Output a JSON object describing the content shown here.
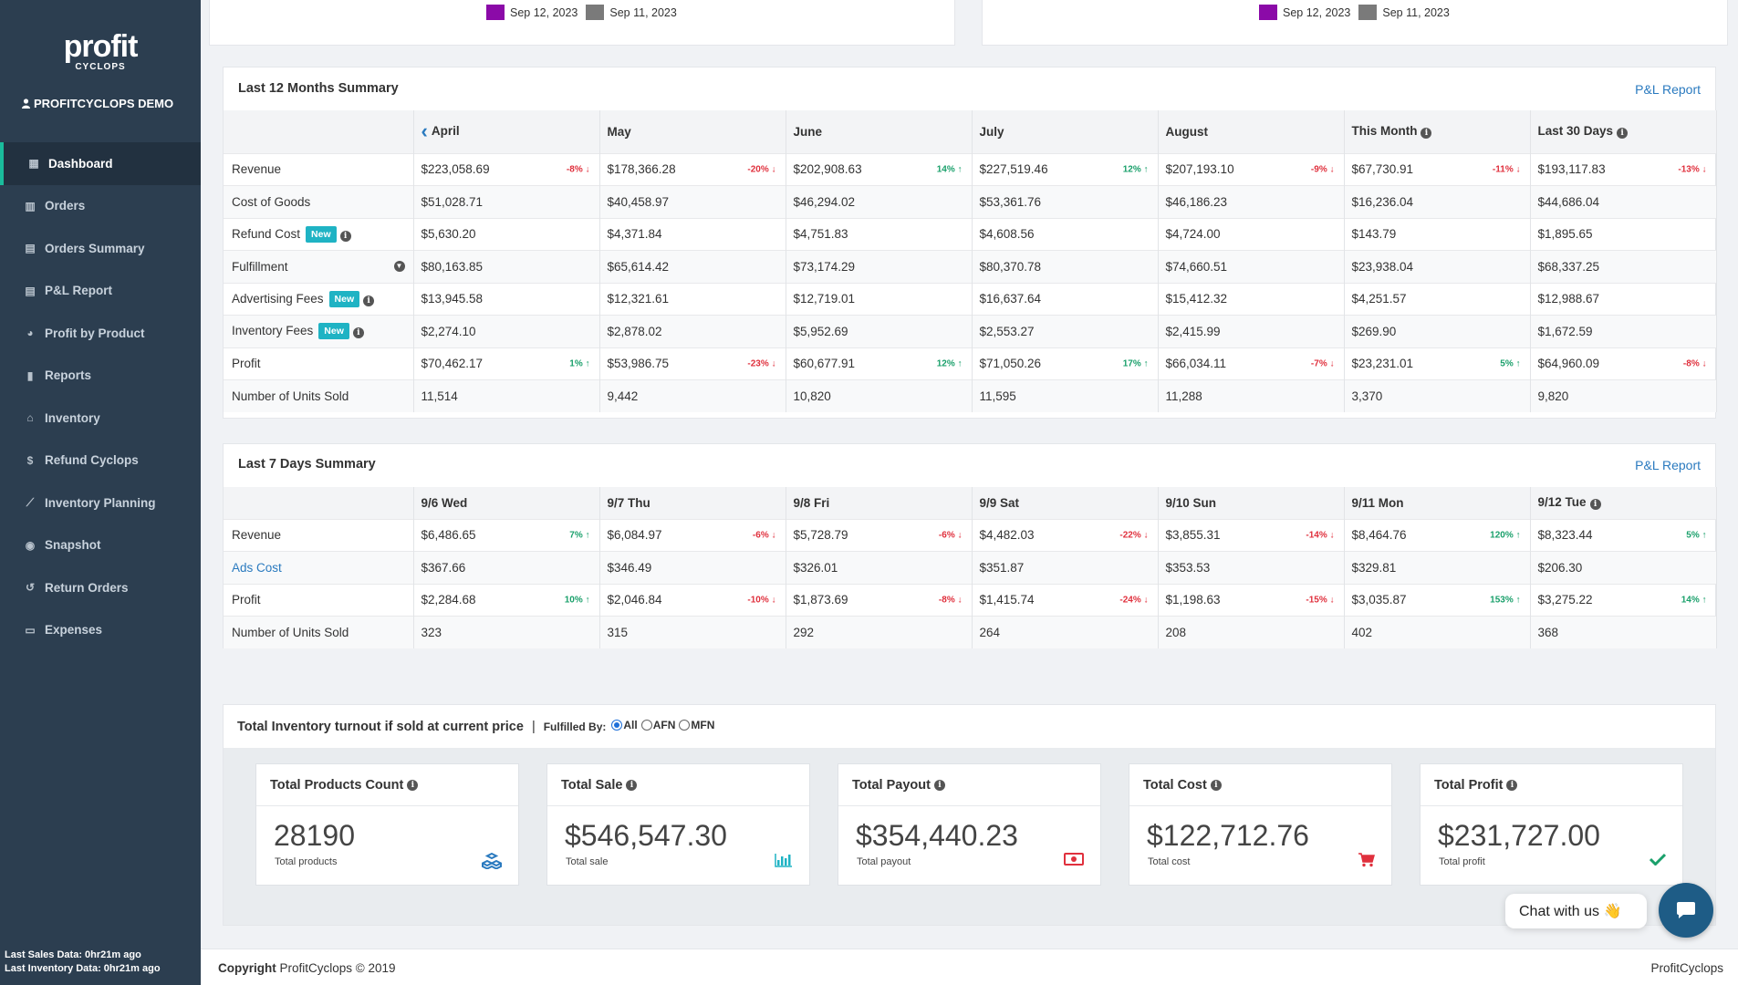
{
  "brand": {
    "line1": "profit",
    "line2": "CYCLOPS"
  },
  "user": {
    "name": "PROFITCYCLOPS DEMO"
  },
  "nav": [
    {
      "label": "Dashboard",
      "icon": "dashboard-icon",
      "active": true
    },
    {
      "label": "Orders",
      "icon": "bar-chart-icon"
    },
    {
      "label": "Orders Summary",
      "icon": "table-icon"
    },
    {
      "label": "P&L Report",
      "icon": "table-icon"
    },
    {
      "label": "Profit by Product",
      "icon": "pie-chart-icon"
    },
    {
      "label": "Reports",
      "icon": "book-icon"
    },
    {
      "label": "Inventory",
      "icon": "bank-icon"
    },
    {
      "label": "Refund Cyclops",
      "icon": "dollar-icon"
    },
    {
      "label": "Inventory Planning",
      "icon": "line-chart-icon"
    },
    {
      "label": "Snapshot",
      "icon": "camera-icon"
    },
    {
      "label": "Return Orders",
      "icon": "undo-icon"
    },
    {
      "label": "Expenses",
      "icon": "money-icon"
    }
  ],
  "sidebar_footer": {
    "sales": "Last Sales Data: 0hr21m ago",
    "inventory": "Last Inventory Data: 0hr21m ago"
  },
  "legends": [
    {
      "items": [
        {
          "label": "Sep 12, 2023",
          "color": "#8b0aa8"
        },
        {
          "label": "Sep 11, 2023",
          "color": "#7a7a7a"
        }
      ]
    },
    {
      "items": [
        {
          "label": "Sep 12, 2023",
          "color": "#8b0aa8"
        },
        {
          "label": "Sep 11, 2023",
          "color": "#7a7a7a"
        }
      ]
    }
  ],
  "monthly": {
    "title": "Last 12 Months Summary",
    "link": "P&L Report",
    "columns": [
      "April",
      "May",
      "June",
      "July",
      "August",
      "This Month",
      "Last 30 Days"
    ],
    "rows": [
      {
        "label": "Revenue",
        "values": [
          "$223,058.69",
          "$178,366.28",
          "$202,908.63",
          "$227,519.46",
          "$207,193.10",
          "$67,730.91",
          "$193,117.83"
        ],
        "changes": [
          [
            "-8%",
            "down"
          ],
          [
            "-20%",
            "down"
          ],
          [
            "14%",
            "up"
          ],
          [
            "12%",
            "up"
          ],
          [
            "-9%",
            "down"
          ],
          [
            "-11%",
            "down"
          ],
          [
            "-13%",
            "down"
          ]
        ]
      },
      {
        "label": "Cost of Goods",
        "values": [
          "$51,028.71",
          "$40,458.97",
          "$46,294.02",
          "$53,361.76",
          "$46,186.23",
          "$16,236.04",
          "$44,686.04"
        ]
      },
      {
        "label": "Refund Cost",
        "badge": "New",
        "info": true,
        "values": [
          "$5,630.20",
          "$4,371.84",
          "$4,751.83",
          "$4,608.56",
          "$4,724.00",
          "$143.79",
          "$1,895.65"
        ]
      },
      {
        "label": "Fulfillment",
        "collapse": true,
        "values": [
          "$80,163.85",
          "$65,614.42",
          "$73,174.29",
          "$80,370.78",
          "$74,660.51",
          "$23,938.04",
          "$68,337.25"
        ]
      },
      {
        "label": "Advertising Fees",
        "badge": "New",
        "info": true,
        "values": [
          "$13,945.58",
          "$12,321.61",
          "$12,719.01",
          "$16,637.64",
          "$15,412.32",
          "$4,251.57",
          "$12,988.67"
        ]
      },
      {
        "label": "Inventory Fees",
        "badge": "New",
        "info": true,
        "values": [
          "$2,274.10",
          "$2,878.02",
          "$5,952.69",
          "$2,553.27",
          "$2,415.99",
          "$269.90",
          "$1,672.59"
        ]
      },
      {
        "label": "Profit",
        "values": [
          "$70,462.17",
          "$53,986.75",
          "$60,677.91",
          "$71,050.26",
          "$66,034.11",
          "$23,231.01",
          "$64,960.09"
        ],
        "changes": [
          [
            "1%",
            "up"
          ],
          [
            "-23%",
            "down"
          ],
          [
            "12%",
            "up"
          ],
          [
            "17%",
            "up"
          ],
          [
            "-7%",
            "down"
          ],
          [
            "5%",
            "up"
          ],
          [
            "-8%",
            "down"
          ]
        ]
      },
      {
        "label": "Number of Units Sold",
        "values": [
          "11,514",
          "9,442",
          "10,820",
          "11,595",
          "11,288",
          "3,370",
          "9,820"
        ]
      }
    ]
  },
  "weekly": {
    "title": "Last 7 Days Summary",
    "link": "P&L Report",
    "columns": [
      "9/6 Wed",
      "9/7 Thu",
      "9/8 Fri",
      "9/9 Sat",
      "9/10 Sun",
      "9/11 Mon",
      "9/12 Tue"
    ],
    "rows": [
      {
        "label": "Revenue",
        "values": [
          "$6,486.65",
          "$6,084.97",
          "$5,728.79",
          "$4,482.03",
          "$3,855.31",
          "$8,464.76",
          "$8,323.44"
        ],
        "changes": [
          [
            "7%",
            "up"
          ],
          [
            "-6%",
            "down"
          ],
          [
            "-6%",
            "down"
          ],
          [
            "-22%",
            "down"
          ],
          [
            "-14%",
            "down"
          ],
          [
            "120%",
            "up"
          ],
          [
            "5%",
            "up"
          ]
        ]
      },
      {
        "label": "Ads Cost",
        "link": true,
        "values": [
          "$367.66",
          "$346.49",
          "$326.01",
          "$351.87",
          "$353.53",
          "$329.81",
          "$206.30"
        ]
      },
      {
        "label": "Profit",
        "values": [
          "$2,284.68",
          "$2,046.84",
          "$1,873.69",
          "$1,415.74",
          "$1,198.63",
          "$3,035.87",
          "$3,275.22"
        ],
        "changes": [
          [
            "10%",
            "up"
          ],
          [
            "-10%",
            "down"
          ],
          [
            "-8%",
            "down"
          ],
          [
            "-24%",
            "down"
          ],
          [
            "-15%",
            "down"
          ],
          [
            "153%",
            "up"
          ],
          [
            "14%",
            "up"
          ]
        ]
      },
      {
        "label": "Number of Units Sold",
        "values": [
          "323",
          "315",
          "292",
          "264",
          "208",
          "402",
          "368"
        ]
      }
    ]
  },
  "inventory": {
    "title": "Total Inventory turnout if sold at current price",
    "separator": "|",
    "fulfilled_by": "Fulfilled By:",
    "options": [
      {
        "label": "All",
        "checked": true
      },
      {
        "label": "AFN"
      },
      {
        "label": "MFN"
      }
    ],
    "cards": [
      {
        "title": "Total Products Count",
        "value": "28190",
        "sub": "Total products",
        "icon": "cubes-icon",
        "icon_color": "#2a7abf"
      },
      {
        "title": "Total Sale",
        "value": "$546,547.30",
        "sub": "Total sale",
        "icon": "bar-chart-icon",
        "icon_color": "#1fb3c4"
      },
      {
        "title": "Total Payout",
        "value": "$354,440.23",
        "sub": "Total payout",
        "icon": "money-icon",
        "icon_color": "#e0303d"
      },
      {
        "title": "Total Cost",
        "value": "$122,712.76",
        "sub": "Total cost",
        "icon": "cart-icon",
        "icon_color": "#e0303d"
      },
      {
        "title": "Total Profit",
        "value": "$231,727.00",
        "sub": "Total profit",
        "icon": "check-icon",
        "icon_color": "#1aa06b"
      }
    ]
  },
  "footer": {
    "copyright_bold": "Copyright",
    "copyright": "ProfitCyclops © 2019",
    "right": "ProfitCyclops"
  },
  "chat": {
    "label": "Chat with us 👋"
  }
}
